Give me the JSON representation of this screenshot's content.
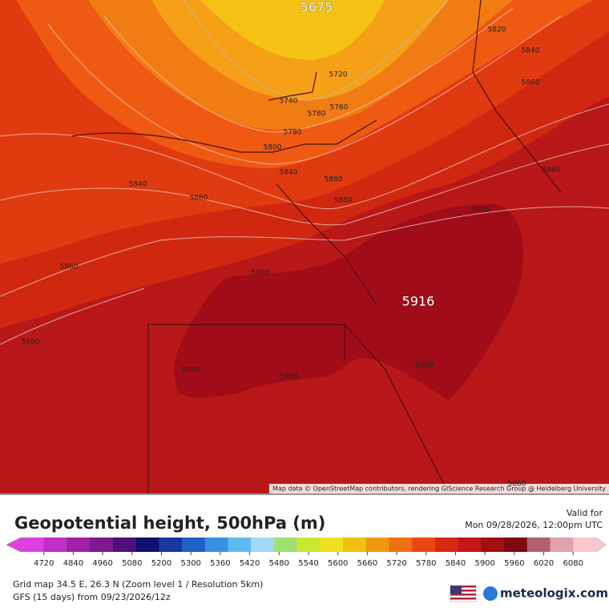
{
  "map": {
    "attribution": "Map data © OpenStreetMap contributors, rendering GIScience Research Group @ Heidelberg University",
    "contour_labels": [
      5675,
      5820,
      5840,
      5720,
      5860,
      5740,
      5760,
      5780,
      5780,
      5800,
      5840,
      5840,
      5860,
      5880,
      5880,
      5880,
      5900,
      5860,
      5900,
      5916,
      5880,
      5900,
      5900,
      5900,
      5880
    ]
  },
  "legend": {
    "title": "Geopotential height, 500hPa (m)",
    "valid_label": "Valid for",
    "valid_time": "Mon 09/28/2026, 12:00pm UTC",
    "scale": [
      4720,
      4840,
      4960,
      5080,
      5200,
      5300,
      5360,
      5420,
      5480,
      5540,
      5600,
      5660,
      5720,
      5780,
      5840,
      5900,
      5960,
      6020,
      6080
    ],
    "colors": [
      "#e040e0",
      "#c030c8",
      "#a020a8",
      "#801890",
      "#501078",
      "#101070",
      "#1838a0",
      "#2060c8",
      "#3890e0",
      "#60b8f0",
      "#a0d8f8",
      "#a0e070",
      "#c8e830",
      "#f0e020",
      "#f0c010",
      "#f09810",
      "#f07010",
      "#e84810",
      "#d82810",
      "#c01818",
      "#a01010",
      "#800810",
      "#b06070",
      "#e0a0b0",
      "#f8c8d0"
    ]
  },
  "footer": {
    "grid": "Grid map 34.5 E, 26.3 N (Zoom level 1 / Resolution 5km)",
    "model": "GFS (15 days) from  09/23/2026/12z",
    "brand": "meteologix.com"
  }
}
